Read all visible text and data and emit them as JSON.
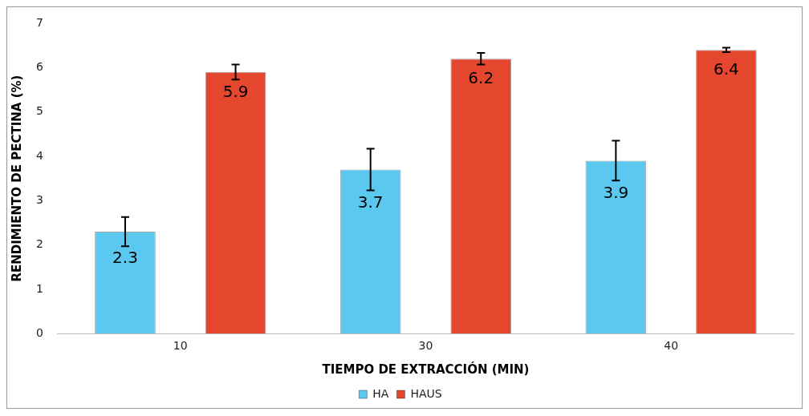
{
  "chart_data": {
    "type": "bar",
    "xlabel": "TIEMPO DE EXTRACCIÓN (MIN)",
    "ylabel": "RENDIMIENTO DE PECTINA (%)",
    "categories": [
      "10",
      "30",
      "40"
    ],
    "series": [
      {
        "name": "HA",
        "color": "#5bc8ef",
        "values": [
          2.3,
          3.7,
          3.9
        ],
        "errors": [
          0.33,
          0.47,
          0.45
        ]
      },
      {
        "name": "HAUS",
        "color": "#e5472e",
        "values": [
          5.9,
          6.2,
          6.4
        ],
        "errors": [
          0.17,
          0.13,
          0.05
        ]
      }
    ],
    "ylim": [
      0,
      7
    ],
    "yticks": [
      0,
      1,
      2,
      3,
      4,
      5,
      6,
      7
    ],
    "grid": false,
    "legend": "bottom",
    "data_labels": true
  }
}
